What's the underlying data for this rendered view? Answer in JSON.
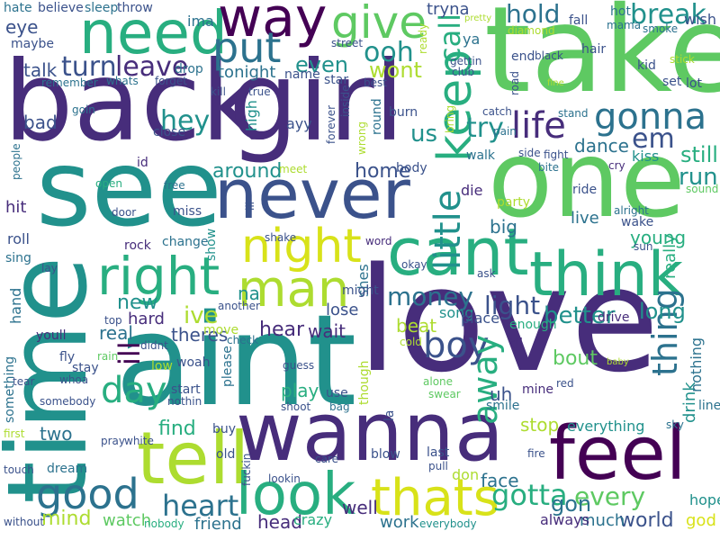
{
  "colors": {
    "c1": "#440154",
    "c2": "#472d7b",
    "c3": "#3b528b",
    "c4": "#2c728e",
    "c5": "#21918c",
    "c6": "#28ae80",
    "c7": "#5ec962",
    "c8": "#addc30",
    "c9": "#d8e219"
  },
  "words": {
    "love": "love",
    "aint": "aint",
    "back": "back",
    "girl": "girl",
    "take": "take",
    "time": "time",
    "see": "see",
    "one": "one",
    "wanna": "wanna",
    "never": "never",
    "cant": "cant",
    "feel": "feel",
    "tell": "tell",
    "think": "think",
    "need": "need",
    "way": "way",
    "give": "give",
    "right": "right",
    "night": "night",
    "look": "look",
    "thats": "thats",
    "man": "man",
    "good": "good",
    "keep": "keep",
    "put": "put",
    "gonna": "gonna",
    "little": "little",
    "life": "life",
    "day": "day",
    "boy": "boy",
    "heart": "heart",
    "thing": "thing",
    "away": "away",
    "gotta": "gotta",
    "every": "every",
    "break": "break",
    "hold": "hold",
    "call": "call",
    "leave": "leave",
    "turn": "turn",
    "ooh": "ooh",
    "even": "even",
    "wont": "wont",
    "hey": "hey",
    "try": "try",
    "money": "money",
    "light": "light",
    "better": "better",
    "long": "long",
    "still": "still",
    "run": "run",
    "em": "em",
    "around": "around",
    "home": "home",
    "mind": "mind",
    "watch": "watch",
    "world": "world",
    "gon": "gon",
    "find": "find",
    "new": "new",
    "ive": "ive",
    "na": "na",
    "ill": "ill",
    "us": "us",
    "dance": "dance",
    "kiss": "kiss",
    "really": "really",
    "live": "live",
    "big": "big",
    "two": "two",
    "play": "play",
    "bout": "bout",
    "stop": "stop",
    "drink": "drink",
    "young": "young",
    "nothing": "nothing",
    "tonight": "tonight",
    "talk": "talk",
    "bad": "bad",
    "real": "real",
    "hard": "hard",
    "theres": "theres",
    "hear": "hear",
    "wait": "wait",
    "lose": "lose",
    "beat": "beat",
    "song": "song",
    "place": "place",
    "enough": "enough",
    "drive": "drive",
    "face": "face",
    "don": "don",
    "well": "well",
    "work": "work",
    "head": "head",
    "friend": "friend",
    "crazy": "crazy",
    "much": "much",
    "always": "always",
    "everything": "everything",
    "god": "god",
    "hope": "hope",
    "eye": "eye",
    "maybe": "maybe",
    "hate": "hate",
    "believe": "believe",
    "sleep": "sleep",
    "throw": "throw",
    "ima": "ima",
    "tryna": "tryna",
    "fall": "fall",
    "wish": "wish",
    "hot": "hot",
    "mama": "mama",
    "ya": "ya",
    "street": "street",
    "name": "name",
    "best": "best",
    "star": "star",
    "remember": "remember",
    "whats": "whats",
    "forget": "forget",
    "drop": "drop",
    "end": "end",
    "black": "black",
    "hair": "hair",
    "smoke": "smoke",
    "kid": "kid",
    "stick": "stick",
    "lot": "lot",
    "set": "set",
    "burn": "burn",
    "stand": "stand",
    "catch": "catch",
    "close": "close",
    "walk": "walk",
    "pain": "pain",
    "side": "side",
    "fight": "fight",
    "bite": "bite",
    "cry": "cry",
    "id": "id",
    "open": "open",
    "free": "free",
    "miss": "miss",
    "door": "door",
    "rock": "rock",
    "change": "change",
    "die": "die",
    "party": "party",
    "ride": "ride",
    "alright": "alright",
    "sound": "sound",
    "hit": "hit",
    "roll": "roll",
    "sing": "sing",
    "lay": "lay",
    "hand": "hand",
    "word": "word",
    "okay": "okay",
    "ask": "ask",
    "wake": "wake",
    "sun": "sun",
    "show": "show",
    "shake": "shake",
    "shes": "shes",
    "might": "might",
    "another": "another",
    "check": "check",
    "move": "move",
    "til": "til",
    "uh": "uh",
    "smile": "smile",
    "mine": "mine",
    "red": "red",
    "line": "line",
    "youll": "youll",
    "stay": "stay",
    "whoa": "whoa",
    "low": "low",
    "woah": "woah",
    "didnt": "didnt",
    "please": "please",
    "guess": "guess",
    "shoot": "shoot",
    "use": "use",
    "bag": "bag",
    "though": "though",
    "alone": "alone",
    "swear": "swear",
    "la": "la",
    "tear": "tear",
    "something": "something",
    "somebody": "somebody",
    "start": "start",
    "nothin": "nothin",
    "white": "white",
    "buy": "buy",
    "first": "first",
    "dream": "dream",
    "touch": "touch",
    "without": "without",
    "nobody": "nobody",
    "old": "old",
    "fuckin": "fuckin",
    "lookin": "lookin",
    "care": "care",
    "blow": "blow",
    "last": "last",
    "pull": "pull",
    "fire": "fire",
    "everybody": "everybody",
    "sky": "sky",
    "body": "body",
    "lil": "lil",
    "high": "high",
    "ayy": "ayy",
    "bring": "bring",
    "round": "round",
    "true": "true",
    "kill": "kill",
    "goin": "goin",
    "club": "club",
    "road": "road",
    "gettin": "gettin",
    "ready": "ready",
    "top": "top",
    "rain": "rain",
    "pray": "pray",
    "wrong": "wrong",
    "meet": "meet",
    "fly": "fly",
    "people": "people",
    "forever": "forever",
    "inside": "inside",
    "fine": "fine",
    "pretty": "pretty",
    "diamond": "diamond",
    "baby": "baby",
    "cold": "cold"
  }
}
